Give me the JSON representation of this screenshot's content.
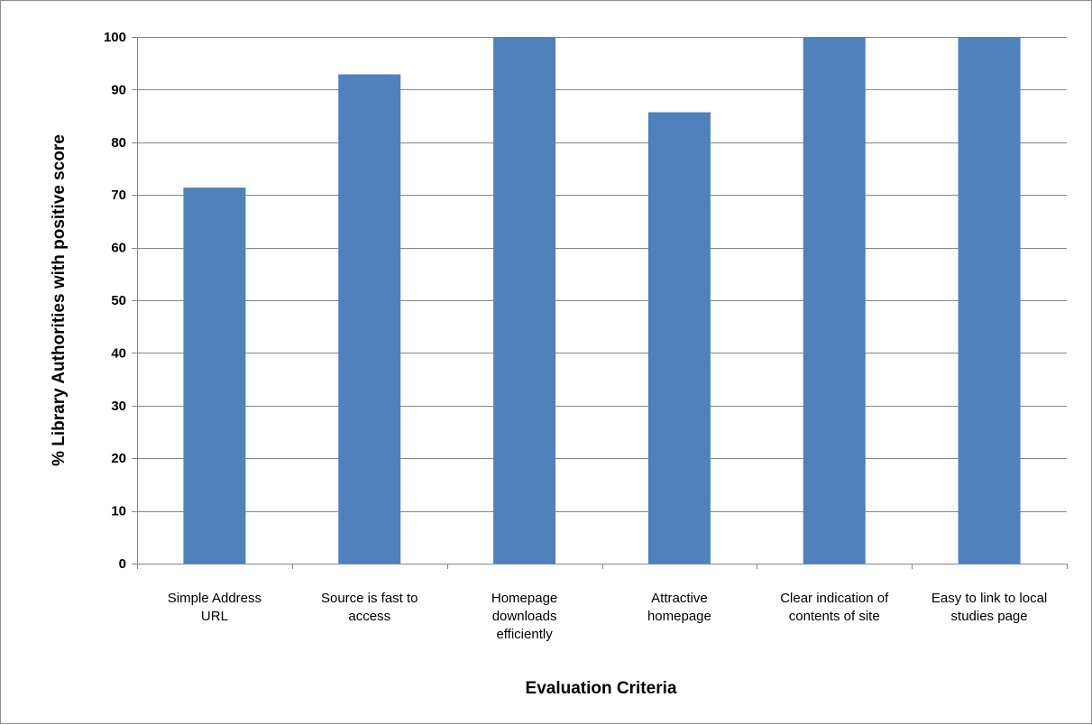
{
  "chart_data": {
    "type": "bar",
    "title": "",
    "xlabel": "Evaluation Criteria",
    "ylabel": "% Library Authorities with positive score",
    "ylim": [
      0,
      100
    ],
    "yticks": [
      0,
      10,
      20,
      30,
      40,
      50,
      60,
      70,
      80,
      90,
      100
    ],
    "grid": true,
    "legend": "none",
    "categories": [
      [
        "Simple Address",
        "URL"
      ],
      [
        "Source is fast to",
        "access"
      ],
      [
        "Homepage",
        "downloads",
        "efficiently"
      ],
      [
        "Attractive",
        "homepage"
      ],
      [
        "Clear indication of",
        "contents of site"
      ],
      [
        "Easy to link to local",
        "studies page"
      ]
    ],
    "values": [
      71.4,
      92.9,
      100,
      85.7,
      100,
      100
    ],
    "bar_color": "#4f81bd",
    "grid_color": "#868686"
  }
}
